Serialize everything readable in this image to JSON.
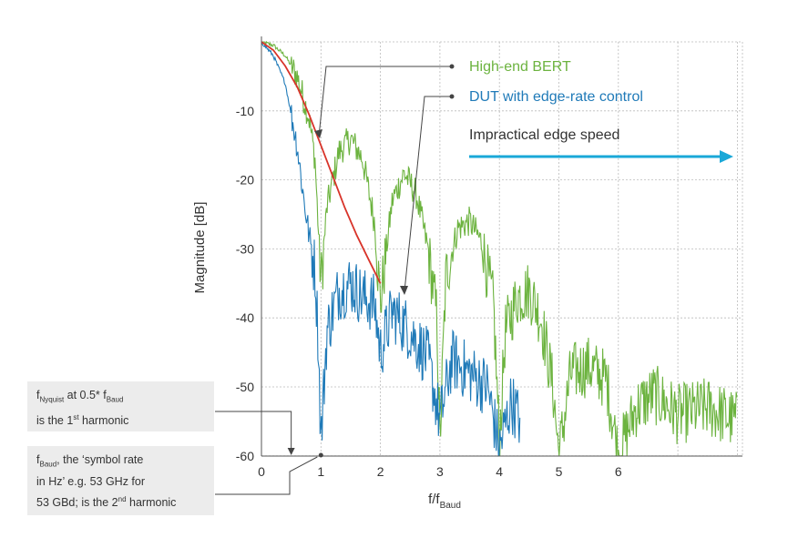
{
  "chart_data": {
    "type": "line",
    "xlabel": "f/f",
    "xlabel_sub": "Baud",
    "ylabel": "Magnitude [dB]",
    "xlim": [
      0,
      8
    ],
    "ylim": [
      -61,
      2
    ],
    "x_ticks": [
      0,
      1,
      2,
      3,
      4,
      5,
      6
    ],
    "y_ticks": [
      -10,
      -20,
      -30,
      -40,
      -50,
      -60
    ],
    "grid": true,
    "legend_position": "top-right",
    "series": [
      {
        "name": "High-end BERT",
        "color": "#6cb33f",
        "x": [
          0,
          0.2,
          0.4,
          0.6,
          0.8,
          0.9,
          1.0,
          1.1,
          1.3,
          1.5,
          1.7,
          1.9,
          2.0,
          2.1,
          2.2,
          2.4,
          2.6,
          2.8,
          2.95,
          3.0,
          3.1,
          3.3,
          3.5,
          3.7,
          3.9,
          4.0,
          4.1,
          4.3,
          4.5,
          4.7,
          4.9,
          5.0,
          5.2,
          5.5,
          5.8,
          6.0,
          6.3,
          6.6,
          7.0,
          7.5,
          8.0
        ],
        "values": [
          0,
          -0.5,
          -2,
          -5,
          -11,
          -17,
          -35,
          -24,
          -16,
          -14,
          -17,
          -26,
          -38,
          -30,
          -23,
          -19,
          -22,
          -30,
          -40,
          -58,
          -34,
          -27,
          -26,
          -29,
          -38,
          -58,
          -42,
          -37,
          -36,
          -40,
          -50,
          -60,
          -48,
          -47,
          -49,
          -60,
          -53,
          -51,
          -54,
          -53,
          -55
        ]
      },
      {
        "name": "DUT with edge-rate control",
        "color": "#1f7ab8",
        "x": [
          0,
          0.2,
          0.4,
          0.6,
          0.7,
          0.8,
          0.9,
          0.95,
          1.0,
          1.1,
          1.3,
          1.5,
          1.7,
          1.9,
          2.0,
          2.2,
          2.5,
          2.8,
          3.0,
          3.2,
          3.5,
          3.8,
          4.0,
          4.2,
          4.35
        ],
        "values": [
          0,
          -2,
          -6,
          -15,
          -22,
          -28,
          -33,
          -42,
          -58,
          -42,
          -36,
          -35,
          -37,
          -38,
          -45,
          -39,
          -42,
          -46,
          -55,
          -46,
          -48,
          -50,
          -59,
          -52,
          -55
        ]
      },
      {
        "name": "Impractical edge speed",
        "color": "#d8342a",
        "x": [
          0,
          0.2,
          0.4,
          0.6,
          0.8,
          1.0,
          1.2,
          1.4,
          1.6,
          1.8,
          2.0
        ],
        "values": [
          0,
          -1.2,
          -3.5,
          -6.5,
          -10.5,
          -15,
          -19.5,
          -24,
          -28,
          -31.5,
          -35
        ]
      }
    ],
    "legend": [
      {
        "label": "High-end BERT",
        "color": "#6cb33f"
      },
      {
        "label": "DUT with edge-rate control",
        "color": "#1f7ab8"
      },
      {
        "label": "Impractical edge speed",
        "color": "#333333"
      }
    ],
    "arrow_color": "#1aa8d8",
    "notes": [
      {
        "parts": [
          "f",
          "Nyquist",
          " at 0.5* f",
          "Baud"
        ],
        "line2_pre": "is the 1",
        "line2_sup": "st",
        "line2_post": " harmonic",
        "target_x": 0.5
      },
      {
        "parts": [
          "f",
          "Baud",
          ", the ‘symbol rate"
        ],
        "line2": "in Hz’ e.g. 53 GHz for",
        "line3_pre": "53 GBd; is the 2",
        "line3_sup": "nd",
        "line3_post": " harmonic",
        "target_x": 1.0
      }
    ]
  }
}
